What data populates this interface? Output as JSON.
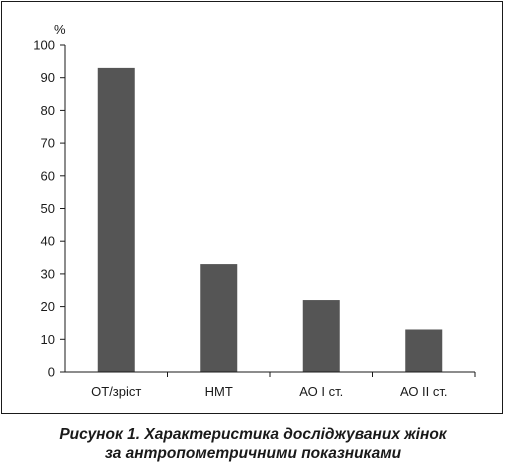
{
  "chart_data": {
    "type": "bar",
    "ylabel": "%",
    "xlabel": "",
    "categories": [
      "ОТ/зріст",
      "НМТ",
      "АО I ст.",
      "АО II ст."
    ],
    "values": [
      93,
      33,
      22,
      13
    ],
    "ylim": [
      0,
      100
    ],
    "yticks": [
      0,
      10,
      20,
      30,
      40,
      50,
      60,
      70,
      80,
      90,
      100
    ],
    "grid": false,
    "legend": "none",
    "bar_color": "#555555"
  },
  "caption": {
    "line1": "Рисунок 1.  Характеристика досліджуваних жінок",
    "line2": "за антропометричними показниками"
  }
}
